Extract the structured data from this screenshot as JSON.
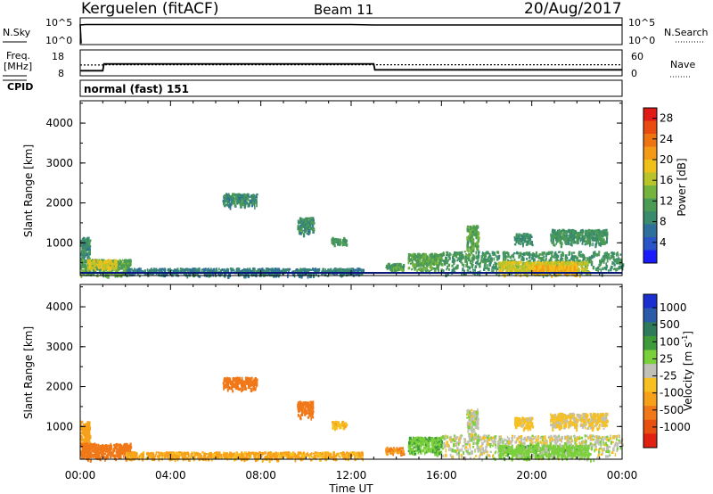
{
  "header": {
    "radar": "Kerguelen (fitACF)",
    "beam": "Beam 11",
    "date": "20/Aug/2017"
  },
  "status_panel": {
    "nsky_label": "N.Sky",
    "nsky_ticks": [
      "10^5",
      "10^0"
    ],
    "nsearch_label": "N.Search",
    "nsearch_ticks": [
      "10^5",
      "10^0"
    ],
    "freq_label": "Freq.",
    "freq_unit": "[MHz]",
    "freq_ticks": [
      "18",
      "8"
    ],
    "nave_label": "Nave",
    "nave_ticks": [
      "60",
      "0"
    ],
    "cpid_label": "CPID",
    "cpid_value": "normal (fast) 151",
    "nsky_series": {
      "times_h": [
        0,
        0.25,
        6,
        12,
        13,
        24
      ],
      "log10": [
        4.0,
        4.1,
        4.1,
        4.1,
        4.0,
        4.0
      ]
    },
    "frequency_series": {
      "times_h": [
        0,
        1,
        1.05,
        13,
        13.05,
        24
      ],
      "mhz": [
        10.5,
        10.5,
        14.5,
        14.5,
        11.0,
        11.0
      ]
    },
    "nave_series": {
      "times_h": [
        0,
        1,
        1.05,
        24
      ],
      "value": [
        35,
        35,
        36,
        36
      ]
    }
  },
  "chart_data": [
    {
      "type": "heatmap",
      "title": "Power",
      "xlabel": "Time UT",
      "ylabel": "Slant Range [km]",
      "x_ticks": [
        "00:00",
        "04:00",
        "08:00",
        "12:00",
        "16:00",
        "20:00",
        "00:00"
      ],
      "xlim_hours": [
        0,
        24
      ],
      "y_ticks": [
        "1000",
        "2000",
        "3000",
        "4000"
      ],
      "ylim_km": [
        180,
        4560
      ],
      "colorbar": {
        "label": "Power [dB]",
        "ticks": [
          "4",
          "8",
          "12",
          "16",
          "20",
          "24",
          "28"
        ],
        "range": [
          0,
          30
        ],
        "colors": [
          "#1a1aff",
          "#2a55c8",
          "#2f6f9c",
          "#3a8a6e",
          "#4b9b55",
          "#74b43c",
          "#b8c42a",
          "#f0c01a",
          "#f59a16",
          "#ee7412",
          "#e84a10",
          "#e01a14"
        ]
      },
      "clusters": [
        {
          "t": [
            0.0,
            0.4
          ],
          "r": [
            200,
            1150
          ],
          "v": 9
        },
        {
          "t": [
            0.0,
            2.2
          ],
          "r": [
            180,
            600
          ],
          "v": 12
        },
        {
          "t": [
            0.3,
            1.6
          ],
          "r": [
            350,
            600
          ],
          "v": 18
        },
        {
          "t": [
            2.0,
            12.5
          ],
          "r": [
            180,
            380
          ],
          "v": 8
        },
        {
          "t": [
            6.3,
            7.8
          ],
          "r": [
            1900,
            2250
          ],
          "v": 9
        },
        {
          "t": [
            9.6,
            10.3
          ],
          "r": [
            1200,
            1650
          ],
          "v": 9
        },
        {
          "t": [
            11.1,
            11.8
          ],
          "r": [
            950,
            1150
          ],
          "v": 10
        },
        {
          "t": [
            13.5,
            14.3
          ],
          "r": [
            300,
            500
          ],
          "v": 11
        },
        {
          "t": [
            14.5,
            16.0
          ],
          "r": [
            300,
            750
          ],
          "v": 12
        },
        {
          "t": [
            16.0,
            24.0
          ],
          "r": [
            180,
            800
          ],
          "v": 10
        },
        {
          "t": [
            18.5,
            22.5
          ],
          "r": [
            200,
            550
          ],
          "v": 17
        },
        {
          "t": [
            17.1,
            17.6
          ],
          "r": [
            700,
            1450
          ],
          "v": 12
        },
        {
          "t": [
            19.2,
            20.0
          ],
          "r": [
            950,
            1250
          ],
          "v": 9
        },
        {
          "t": [
            20.8,
            23.3
          ],
          "r": [
            950,
            1350
          ],
          "v": 10
        },
        {
          "t": [
            20.0,
            22.0
          ],
          "r": [
            200,
            450
          ],
          "v": 20
        }
      ]
    },
    {
      "type": "heatmap",
      "title": "Velocity",
      "xlabel": "Time UT",
      "ylabel": "Slant Range [km]",
      "x_ticks": [
        "00:00",
        "04:00",
        "08:00",
        "12:00",
        "16:00",
        "20:00",
        "00:00"
      ],
      "xlim_hours": [
        0,
        24
      ],
      "y_ticks": [
        "1000",
        "2000",
        "3000",
        "4000"
      ],
      "ylim_km": [
        180,
        4560
      ],
      "colorbar": {
        "label": "Velocity [m s^-1]",
        "ticks": [
          "1000",
          "500",
          "100",
          "25",
          "-25",
          "-100",
          "-500",
          "-1000"
        ],
        "colors": [
          "#1a2fd0",
          "#2a5aa8",
          "#2f7a5a",
          "#3f9a3c",
          "#7ad03a",
          "#c0c0b8",
          "#f6c022",
          "#f7a01a",
          "#f07818",
          "#e85012",
          "#e02010"
        ]
      },
      "clusters": [
        {
          "t": [
            0.0,
            0.4
          ],
          "r": [
            200,
            1150
          ],
          "v": -150
        },
        {
          "t": [
            0.0,
            2.2
          ],
          "r": [
            180,
            600
          ],
          "v": -300
        },
        {
          "t": [
            2.0,
            12.5
          ],
          "r": [
            180,
            380
          ],
          "v": -120
        },
        {
          "t": [
            6.3,
            7.8
          ],
          "r": [
            1900,
            2250
          ],
          "v": -450
        },
        {
          "t": [
            9.6,
            10.3
          ],
          "r": [
            1200,
            1650
          ],
          "v": -420
        },
        {
          "t": [
            11.1,
            11.8
          ],
          "r": [
            950,
            1150
          ],
          "v": -80
        },
        {
          "t": [
            13.5,
            14.3
          ],
          "r": [
            300,
            500
          ],
          "v": -200
        },
        {
          "t": [
            14.5,
            16.0
          ],
          "r": [
            300,
            750
          ],
          "v": 80
        },
        {
          "t": [
            16.0,
            24.0
          ],
          "r": [
            180,
            800
          ],
          "v": 0
        },
        {
          "t": [
            18.5,
            22.5
          ],
          "r": [
            200,
            550
          ],
          "v": 60
        },
        {
          "t": [
            17.1,
            17.6
          ],
          "r": [
            700,
            1450
          ],
          "v": 0
        },
        {
          "t": [
            19.2,
            20.0
          ],
          "r": [
            950,
            1250
          ],
          "v": -60
        },
        {
          "t": [
            20.8,
            23.3
          ],
          "r": [
            950,
            1350
          ],
          "v": -40
        }
      ]
    }
  ]
}
